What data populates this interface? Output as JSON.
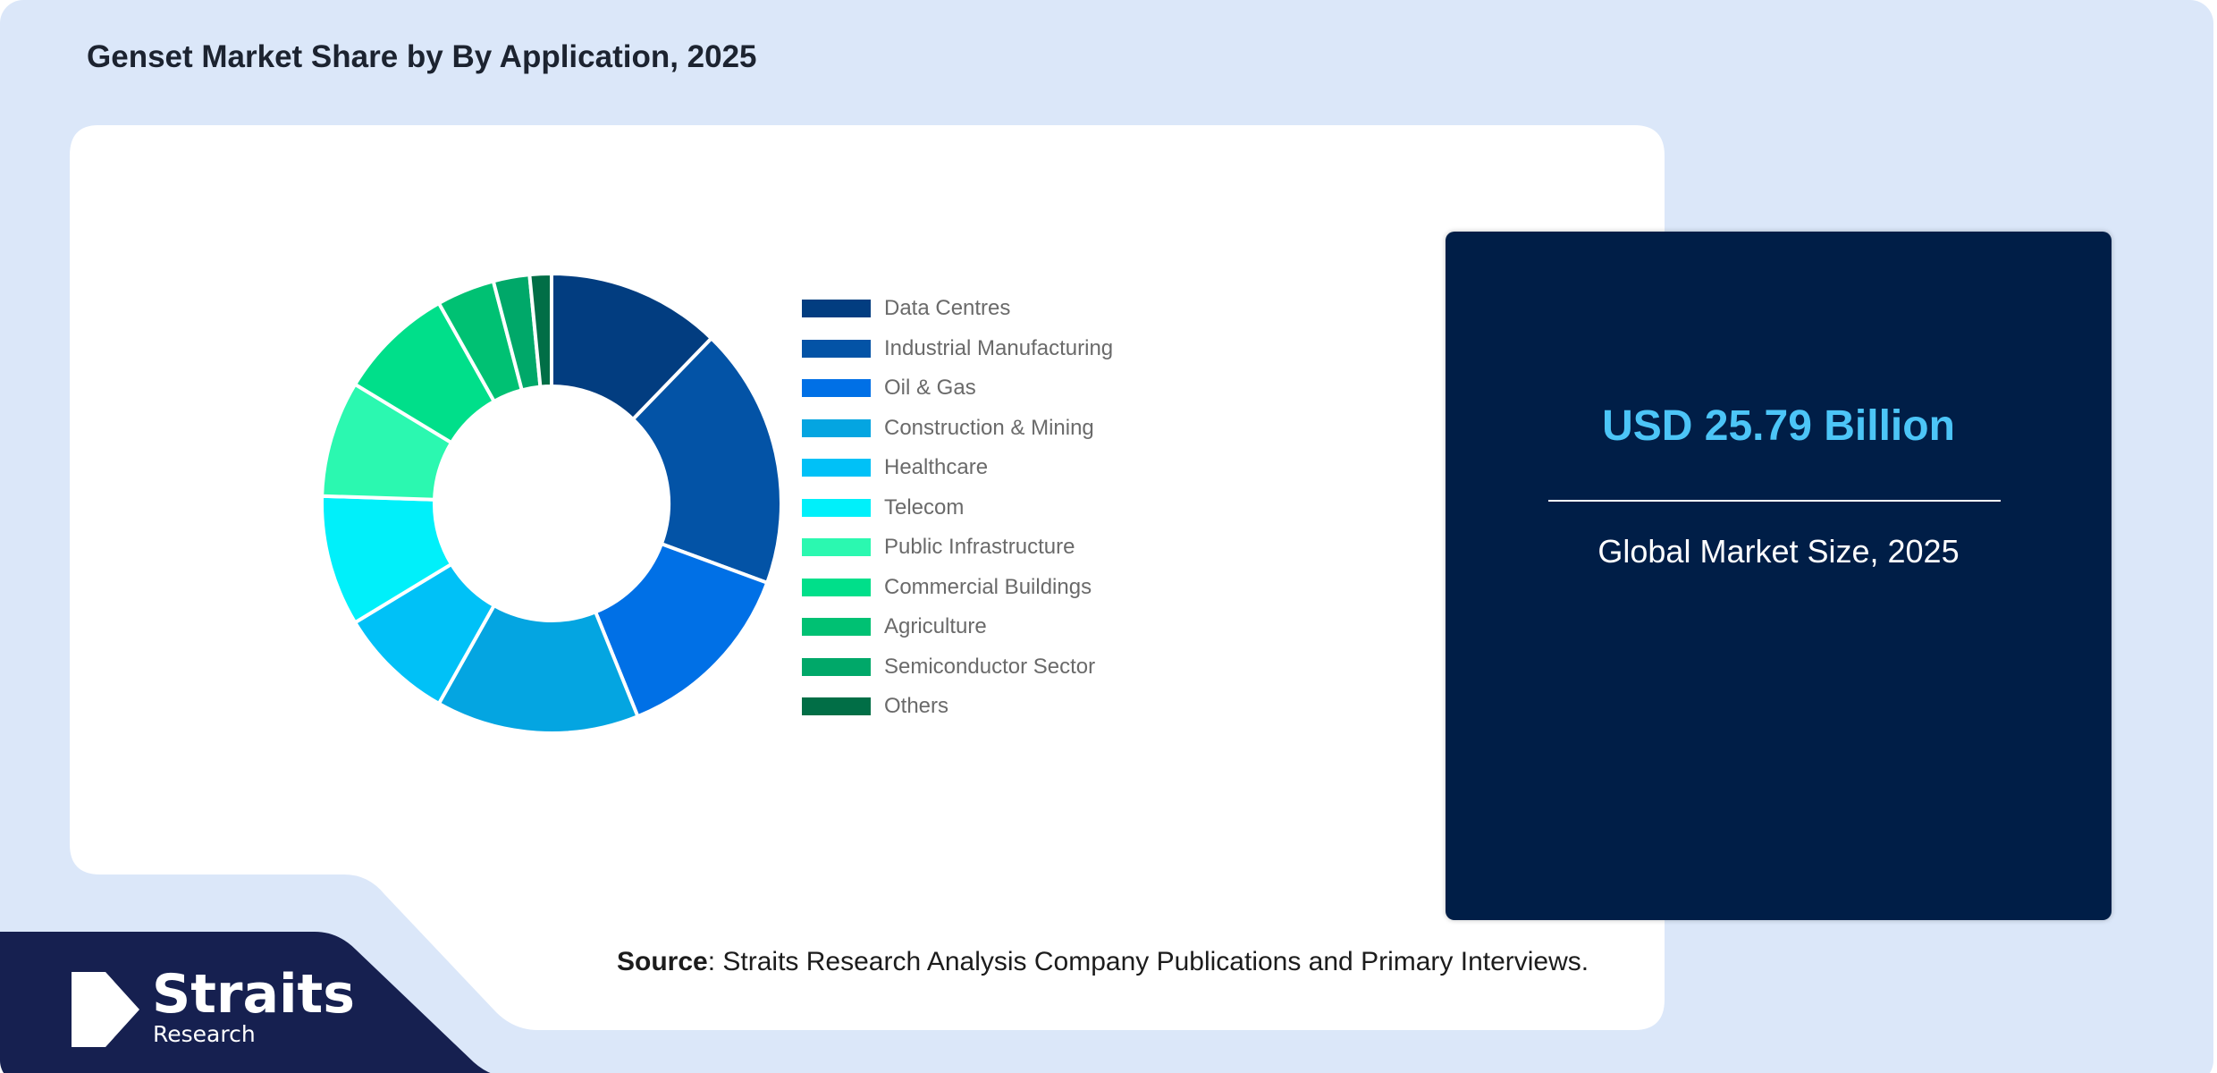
{
  "title": "Genset Market Share by By Application, 2025",
  "colors": {
    "background": "#dbe7f9",
    "panel": "#ffffff",
    "kpi_box": "#001e47",
    "kpi_value": "#4cc5f7",
    "footer_band": "#162050"
  },
  "chart_data": {
    "type": "pie",
    "variant": "donut",
    "title": "",
    "categories": [
      "Data Centres",
      "Industrial Manufacturing",
      "Oil & Gas",
      "Construction & Mining",
      "Healthcare",
      "Telecom",
      "Public Infrastructure",
      "Commercial Buildings",
      "Agriculture",
      "Semiconductor Sector",
      "Others"
    ],
    "values": [
      12,
      18,
      13,
      14,
      8,
      9,
      8,
      8,
      4,
      2.5,
      1.5
    ],
    "colors": [
      "#023d80",
      "#0353a6",
      "#0070e6",
      "#04a5e1",
      "#00c1f7",
      "#00f0fa",
      "#2bf8b0",
      "#00df8a",
      "#00c173",
      "#00a869",
      "#016e46"
    ],
    "legend_position": "right",
    "start_angle": "top",
    "direction": "clockwise"
  },
  "kpi": {
    "value": "USD 25.79 Billion",
    "label": "Global Market Size, 2025"
  },
  "source": {
    "label": "Source",
    "text": ": Straits Research Analysis Company Publications and Primary Interviews."
  },
  "logo": {
    "name": "Straits",
    "sub": "Research"
  }
}
